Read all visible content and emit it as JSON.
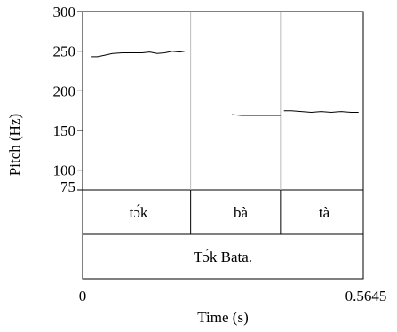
{
  "chart_data": {
    "type": "line",
    "title": "",
    "xlabel": "Time (s)",
    "ylabel": "Pitch (Hz)",
    "xlim": [
      0,
      0.5645
    ],
    "ylim": [
      75,
      300
    ],
    "x_tick_labels": [
      "0",
      "0.5645"
    ],
    "y_ticks": [
      100,
      150,
      200,
      250,
      300
    ],
    "y_bottom_label": "75",
    "boundaries": [
      0.2173,
      0.3981
    ],
    "series": [
      {
        "x": [
          0.018,
          0.03,
          0.045,
          0.06,
          0.08,
          0.1,
          0.12,
          0.135,
          0.15,
          0.165,
          0.18,
          0.195,
          0.205
        ],
        "y": [
          243,
          243,
          245,
          247,
          248,
          248,
          248,
          249,
          247,
          248,
          250,
          249,
          250
        ]
      },
      {
        "x": [
          0.3,
          0.32,
          0.34,
          0.36,
          0.38,
          0.398
        ],
        "y": [
          170,
          169,
          169,
          169,
          169,
          169
        ]
      },
      {
        "x": [
          0.405,
          0.42,
          0.44,
          0.46,
          0.48,
          0.5,
          0.52,
          0.54,
          0.555
        ],
        "y": [
          175,
          175,
          174,
          173,
          174,
          173,
          174,
          173,
          173
        ]
      }
    ],
    "grid": false,
    "legend": "none"
  },
  "tiers": {
    "syllables": [
      "tɔ́k",
      "bà",
      "tà"
    ],
    "sentence": "Tɔ́k Bata."
  },
  "colors": {
    "line": "#000000",
    "frame": "#000000",
    "boundary": "#bbbbbb"
  }
}
